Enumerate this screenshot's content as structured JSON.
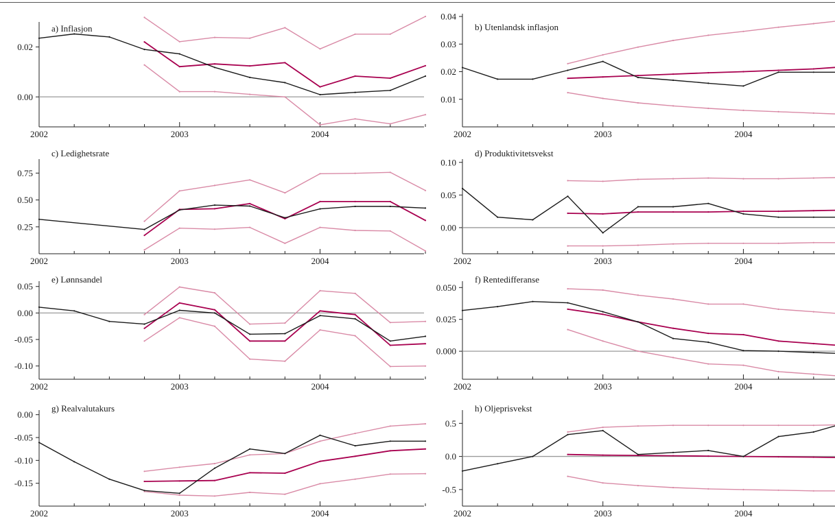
{
  "colors": {
    "actual": "#1a1a1a",
    "forecast": "#a8004f",
    "band": "#d98aa6",
    "zero_line": "#9a9a9a"
  },
  "chart_data": [
    {
      "id": "a",
      "type": "line",
      "title": "a) Inflasjon",
      "ylim": [
        -0.012,
        0.03
      ],
      "yticks": [
        0.0,
        0.02
      ],
      "ytick_labels": [
        "0.00",
        "0.02"
      ],
      "zero_line": true,
      "x_tick_labels": [
        "2002",
        "2003",
        "2004"
      ],
      "series": [
        {
          "role": "actual",
          "x": [
            2002.0,
            2002.25,
            2002.5,
            2002.75,
            2003.0,
            2003.25,
            2003.5,
            2003.75,
            2004.0,
            2004.25,
            2004.5,
            2004.75
          ],
          "values": [
            0.0235,
            0.0252,
            0.024,
            0.019,
            0.0172,
            0.0118,
            0.0078,
            0.0057,
            0.0009,
            0.0018,
            0.0026,
            0.0083
          ]
        },
        {
          "role": "forecast",
          "x": [
            2002.75,
            2003.0,
            2003.25,
            2003.5,
            2003.75,
            2004.0,
            2004.25,
            2004.5,
            2004.75
          ],
          "values": [
            0.022,
            0.0121,
            0.0132,
            0.0124,
            0.0137,
            0.004,
            0.0083,
            0.0075,
            0.0125
          ]
        },
        {
          "role": "upper",
          "x": [
            2002.75,
            2003.0,
            2003.25,
            2003.5,
            2003.75,
            2004.0,
            2004.25,
            2004.5,
            2004.75
          ],
          "values": [
            0.0318,
            0.0221,
            0.0238,
            0.0235,
            0.0277,
            0.0192,
            0.0251,
            0.0251,
            0.0322
          ]
        },
        {
          "role": "lower",
          "x": [
            2002.75,
            2003.0,
            2003.25,
            2003.5,
            2003.75,
            2004.0,
            2004.25,
            2004.5,
            2004.75
          ],
          "values": [
            0.0128,
            0.0021,
            0.0021,
            0.001,
            0.0,
            -0.0112,
            -0.0088,
            -0.0108,
            -0.0071
          ]
        }
      ]
    },
    {
      "id": "b",
      "type": "line",
      "title": "b) Utenlandsk inflasjon",
      "ylim": [
        0.0,
        0.041
      ],
      "yticks": [
        0.01,
        0.02,
        0.03,
        0.04
      ],
      "ytick_labels": [
        "0.01",
        "0.02",
        "0.03",
        "0.04"
      ],
      "zero_line": false,
      "x_tick_labels": [
        "2002",
        "2003",
        "2004"
      ],
      "series": [
        {
          "role": "actual",
          "x": [
            2002.0,
            2002.25,
            2002.5,
            2002.75,
            2003.0,
            2003.25,
            2003.5,
            2003.75,
            2004.0,
            2004.25,
            2004.5,
            2004.75
          ],
          "values": [
            0.0215,
            0.0173,
            0.0173,
            0.0205,
            0.0237,
            0.0179,
            0.0169,
            0.0158,
            0.0148,
            0.0198,
            0.0198,
            0.0198
          ]
        },
        {
          "role": "forecast",
          "x": [
            2002.75,
            2003.0,
            2003.25,
            2003.5,
            2003.75,
            2004.0,
            2004.25,
            2004.5,
            2004.75
          ],
          "values": [
            0.0176,
            0.0181,
            0.0186,
            0.0191,
            0.0196,
            0.02,
            0.0205,
            0.021,
            0.0219
          ]
        },
        {
          "role": "upper",
          "x": [
            2002.75,
            2003.0,
            2003.25,
            2003.5,
            2003.75,
            2004.0,
            2004.25,
            2004.5,
            2004.75
          ],
          "values": [
            0.0229,
            0.0261,
            0.0289,
            0.0313,
            0.0332,
            0.0346,
            0.0361,
            0.0374,
            0.0388
          ]
        },
        {
          "role": "lower",
          "x": [
            2002.75,
            2003.0,
            2003.25,
            2003.5,
            2003.75,
            2004.0,
            2004.25,
            2004.5,
            2004.75
          ],
          "values": [
            0.0124,
            0.0103,
            0.0087,
            0.0076,
            0.0067,
            0.006,
            0.0055,
            0.005,
            0.0045
          ]
        }
      ]
    },
    {
      "id": "c",
      "type": "line",
      "title": "c) Ledighetsrate",
      "ylim": [
        0.0,
        0.88
      ],
      "yticks": [
        0.25,
        0.5,
        0.75
      ],
      "ytick_labels": [
        "0.25",
        "0.50",
        "0.75"
      ],
      "zero_line": false,
      "x_tick_labels": [
        "2002",
        "2003",
        "2004"
      ],
      "series": [
        {
          "role": "actual",
          "x": [
            2002.0,
            2002.75,
            2003.0,
            2003.25,
            2003.5,
            2003.75,
            2004.0,
            2004.25,
            2004.5,
            2004.75
          ],
          "values": [
            0.32,
            0.226,
            0.407,
            0.452,
            0.443,
            0.335,
            0.417,
            0.44,
            0.44,
            0.425
          ]
        },
        {
          "role": "forecast",
          "x": [
            2002.75,
            2003.0,
            2003.25,
            2003.5,
            2003.75,
            2004.0,
            2004.25,
            2004.5,
            2004.75
          ],
          "values": [
            0.171,
            0.412,
            0.418,
            0.466,
            0.326,
            0.485,
            0.485,
            0.485,
            0.31
          ]
        },
        {
          "role": "upper",
          "x": [
            2002.75,
            2003.0,
            2003.25,
            2003.5,
            2003.75,
            2004.0,
            2004.25,
            2004.5,
            2004.75
          ],
          "values": [
            0.302,
            0.584,
            0.635,
            0.687,
            0.566,
            0.744,
            0.748,
            0.757,
            0.588
          ]
        },
        {
          "role": "lower",
          "x": [
            2002.75,
            2003.0,
            2003.25,
            2003.5,
            2003.75,
            2004.0,
            2004.25,
            2004.5,
            2004.75
          ],
          "values": [
            0.036,
            0.238,
            0.228,
            0.245,
            0.097,
            0.245,
            0.217,
            0.212,
            0.026
          ]
        }
      ]
    },
    {
      "id": "d",
      "type": "line",
      "title": "d) Produktivitetsvekst",
      "ylim": [
        -0.04,
        0.105
      ],
      "yticks": [
        0.0,
        0.05,
        0.1
      ],
      "ytick_labels": [
        "0.00",
        "0.05",
        "0.10"
      ],
      "zero_line": true,
      "x_tick_labels": [
        "2002",
        "2003",
        "2004"
      ],
      "series": [
        {
          "role": "actual",
          "x": [
            2002.0,
            2002.25,
            2002.5,
            2002.75,
            2003.0,
            2003.25,
            2003.5,
            2003.75,
            2004.0,
            2004.25,
            2004.5,
            2004.75
          ],
          "values": [
            0.06,
            0.016,
            0.012,
            0.048,
            -0.008,
            0.032,
            0.032,
            0.037,
            0.021,
            0.016,
            0.016,
            0.016
          ]
        },
        {
          "role": "forecast",
          "x": [
            2002.75,
            2003.0,
            2003.25,
            2003.5,
            2003.75,
            2004.0,
            2004.25,
            2004.5,
            2004.75
          ],
          "values": [
            0.022,
            0.021,
            0.024,
            0.024,
            0.024,
            0.025,
            0.025,
            0.026,
            0.027
          ]
        },
        {
          "role": "upper",
          "x": [
            2002.75,
            2003.0,
            2003.25,
            2003.5,
            2003.75,
            2004.0,
            2004.25,
            2004.5,
            2004.75
          ],
          "values": [
            0.072,
            0.071,
            0.074,
            0.075,
            0.076,
            0.075,
            0.075,
            0.076,
            0.077
          ]
        },
        {
          "role": "lower",
          "x": [
            2002.75,
            2003.0,
            2003.25,
            2003.5,
            2003.75,
            2004.0,
            2004.25,
            2004.5,
            2004.75
          ],
          "values": [
            -0.028,
            -0.028,
            -0.027,
            -0.025,
            -0.024,
            -0.024,
            -0.024,
            -0.023,
            -0.023
          ]
        }
      ]
    },
    {
      "id": "e",
      "type": "line",
      "title": "e) Lønnsandel",
      "ylim": [
        -0.125,
        0.06
      ],
      "yticks": [
        -0.1,
        -0.05,
        0.0,
        0.05
      ],
      "ytick_labels": [
        "-0.10",
        "-0.05",
        "0.00",
        "0.05"
      ],
      "zero_line": true,
      "x_tick_labels": [
        "2002",
        "2003",
        "2004"
      ],
      "series": [
        {
          "role": "actual",
          "x": [
            2002.0,
            2002.25,
            2002.5,
            2002.75,
            2003.0,
            2003.25,
            2003.5,
            2003.75,
            2004.0,
            2004.25,
            2004.5,
            2004.75
          ],
          "values": [
            0.011,
            0.004,
            -0.016,
            -0.021,
            0.005,
            0.0,
            -0.04,
            -0.039,
            -0.005,
            -0.011,
            -0.053,
            -0.044
          ]
        },
        {
          "role": "forecast",
          "x": [
            2002.75,
            2003.0,
            2003.25,
            2003.5,
            2003.75,
            2004.0,
            2004.25,
            2004.5,
            2004.75
          ],
          "values": [
            -0.029,
            0.019,
            0.006,
            -0.053,
            -0.053,
            0.004,
            -0.003,
            -0.061,
            -0.058
          ]
        },
        {
          "role": "upper",
          "x": [
            2002.75,
            2003.0,
            2003.25,
            2003.5,
            2003.75,
            2004.0,
            2004.25,
            2004.5,
            2004.75
          ],
          "values": [
            -0.003,
            0.049,
            0.038,
            -0.021,
            -0.019,
            0.042,
            0.037,
            -0.018,
            -0.016
          ]
        },
        {
          "role": "lower",
          "x": [
            2002.75,
            2003.0,
            2003.25,
            2003.5,
            2003.75,
            2004.0,
            2004.25,
            2004.5,
            2004.75
          ],
          "values": [
            -0.053,
            -0.009,
            -0.025,
            -0.087,
            -0.091,
            -0.032,
            -0.043,
            -0.101,
            -0.1
          ]
        }
      ]
    },
    {
      "id": "f",
      "type": "line",
      "title": "f) Rentedifferanse",
      "ylim": [
        -0.022,
        0.055
      ],
      "yticks": [
        0.0,
        0.025,
        0.05
      ],
      "ytick_labels": [
        "0.000",
        "0.025",
        "0.050"
      ],
      "zero_line": true,
      "x_tick_labels": [
        "2002",
        "2003",
        "2004"
      ],
      "series": [
        {
          "role": "actual",
          "x": [
            2002.0,
            2002.25,
            2002.5,
            2002.75,
            2003.0,
            2003.25,
            2003.5,
            2003.75,
            2004.0,
            2004.25,
            2004.5,
            2004.75
          ],
          "values": [
            0.032,
            0.035,
            0.039,
            0.038,
            0.031,
            0.023,
            0.01,
            0.007,
            0.0005,
            0.0,
            -0.001,
            -0.002
          ]
        },
        {
          "role": "forecast",
          "x": [
            2002.75,
            2003.0,
            2003.25,
            2003.5,
            2003.75,
            2004.0,
            2004.25,
            2004.5,
            2004.75
          ],
          "values": [
            0.033,
            0.029,
            0.023,
            0.018,
            0.014,
            0.013,
            0.008,
            0.006,
            0.004
          ]
        },
        {
          "role": "upper",
          "x": [
            2002.75,
            2003.0,
            2003.25,
            2003.5,
            2003.75,
            2004.0,
            2004.25,
            2004.5,
            2004.75
          ],
          "values": [
            0.049,
            0.048,
            0.044,
            0.041,
            0.037,
            0.037,
            0.033,
            0.031,
            0.029
          ]
        },
        {
          "role": "lower",
          "x": [
            2002.75,
            2003.0,
            2003.25,
            2003.5,
            2003.75,
            2004.0,
            2004.25,
            2004.5,
            2004.75
          ],
          "values": [
            0.017,
            0.008,
            0.0,
            -0.005,
            -0.01,
            -0.011,
            -0.016,
            -0.018,
            -0.02
          ]
        }
      ]
    },
    {
      "id": "g",
      "type": "line",
      "title": "g) Realvalutakurs",
      "ylim": [
        -0.2,
        0.01
      ],
      "yticks": [
        -0.15,
        -0.1,
        -0.05,
        0.0
      ],
      "ytick_labels": [
        "-0.15",
        "-0.10",
        "-0.05",
        "0.00"
      ],
      "zero_line": false,
      "x_tick_labels": [
        "2002",
        "2003",
        "2004"
      ],
      "series": [
        {
          "role": "actual",
          "x": [
            2002.0,
            2002.25,
            2002.5,
            2002.75,
            2003.0,
            2003.25,
            2003.5,
            2003.75,
            2004.0,
            2004.25,
            2004.5,
            2004.75
          ],
          "values": [
            -0.061,
            -0.103,
            -0.141,
            -0.166,
            -0.172,
            -0.117,
            -0.075,
            -0.085,
            -0.045,
            -0.068,
            -0.058,
            -0.058
          ]
        },
        {
          "role": "forecast",
          "x": [
            2002.75,
            2003.0,
            2003.25,
            2003.5,
            2003.75,
            2004.0,
            2004.25,
            2004.5,
            2004.75
          ],
          "values": [
            -0.146,
            -0.145,
            -0.144,
            -0.127,
            -0.128,
            -0.102,
            -0.091,
            -0.079,
            -0.075
          ]
        },
        {
          "role": "upper",
          "x": [
            2002.75,
            2003.0,
            2003.25,
            2003.5,
            2003.75,
            2004.0,
            2004.25,
            2004.5,
            2004.75
          ],
          "values": [
            -0.124,
            -0.115,
            -0.107,
            -0.088,
            -0.085,
            -0.058,
            -0.041,
            -0.025,
            -0.02
          ]
        },
        {
          "role": "lower",
          "x": [
            2002.75,
            2003.0,
            2003.25,
            2003.5,
            2003.75,
            2004.0,
            2004.25,
            2004.5,
            2004.75
          ],
          "values": [
            -0.168,
            -0.176,
            -0.178,
            -0.17,
            -0.174,
            -0.151,
            -0.141,
            -0.13,
            -0.129
          ]
        }
      ]
    },
    {
      "id": "h",
      "type": "line",
      "title": "h) Oljeprisvekst",
      "ylim": [
        -0.75,
        0.7
      ],
      "yticks": [
        -0.5,
        0.0,
        0.5
      ],
      "ytick_labels": [
        "-0.5",
        "0.0",
        "0.5"
      ],
      "zero_line": true,
      "x_tick_labels": [
        "2002",
        "2003",
        "2004"
      ],
      "series": [
        {
          "role": "actual",
          "x": [
            2002.0,
            2002.25,
            2002.5,
            2002.75,
            2003.0,
            2003.25,
            2003.5,
            2003.75,
            2004.0,
            2004.25,
            2004.5,
            2004.75
          ],
          "values": [
            -0.22,
            -0.11,
            0.0,
            0.33,
            0.39,
            0.03,
            0.06,
            0.09,
            0.0,
            0.3,
            0.37,
            0.52
          ]
        },
        {
          "role": "forecast",
          "x": [
            2002.75,
            2003.0,
            2003.25,
            2003.5,
            2003.75,
            2004.0,
            2004.25,
            2004.5,
            2004.75
          ],
          "values": [
            0.03,
            0.02,
            0.015,
            0.01,
            0.005,
            0.0,
            -0.005,
            -0.01,
            -0.02
          ]
        },
        {
          "role": "upper",
          "x": [
            2002.75,
            2003.0,
            2003.25,
            2003.5,
            2003.75,
            2004.0,
            2004.25,
            2004.5,
            2004.75
          ],
          "values": [
            0.37,
            0.44,
            0.46,
            0.47,
            0.47,
            0.47,
            0.47,
            0.47,
            0.48
          ]
        },
        {
          "role": "lower",
          "x": [
            2002.75,
            2003.0,
            2003.25,
            2003.5,
            2003.75,
            2004.0,
            2004.25,
            2004.5,
            2004.75
          ],
          "values": [
            -0.3,
            -0.4,
            -0.44,
            -0.47,
            -0.49,
            -0.5,
            -0.51,
            -0.52,
            -0.52
          ]
        }
      ]
    }
  ]
}
